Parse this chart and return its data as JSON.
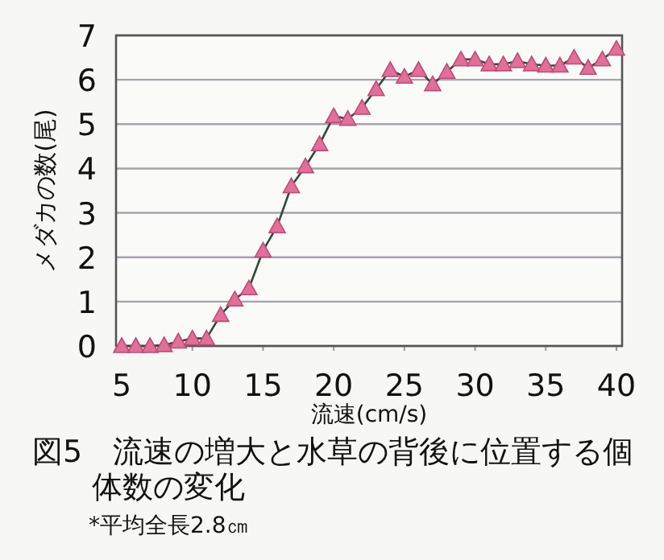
{
  "chart_data": {
    "type": "line",
    "title": "図5　流速の増大と水草の背後に位置する個体数の変化",
    "xlabel": "流速(cm/s)",
    "ylabel": "メダカの数(尾)",
    "annotations": [
      "*平均全長2.8㎝"
    ],
    "x": [
      5,
      6,
      7,
      8,
      9,
      10,
      11,
      12,
      13,
      14,
      15,
      16,
      17,
      18,
      19,
      20,
      21,
      22,
      23,
      24,
      25,
      26,
      27,
      28,
      29,
      30,
      31,
      32,
      33,
      34,
      35,
      36,
      37,
      38,
      39,
      40
    ],
    "series": [
      {
        "color": "#e0709a",
        "values": [
          0,
          0,
          0,
          0.02,
          0.1,
          0.17,
          0.17,
          0.7,
          1.05,
          1.3,
          2.15,
          2.7,
          3.6,
          4.05,
          4.55,
          5.18,
          5.12,
          5.37,
          5.79,
          6.22,
          6.07,
          6.22,
          5.9,
          6.18,
          6.46,
          6.46,
          6.35,
          6.35,
          6.42,
          6.35,
          6.32,
          6.32,
          6.5,
          6.27,
          6.46,
          6.7
        ]
      }
    ],
    "xlim": [
      4.6,
      40.4
    ],
    "xticks": [
      5,
      10,
      15,
      20,
      25,
      30,
      35,
      40
    ],
    "ylim": [
      0,
      7
    ],
    "yticks": [
      0,
      1,
      2,
      3,
      4,
      5,
      6,
      7
    ],
    "grid": "y",
    "marker": "triangle",
    "line_style": "solid"
  }
}
